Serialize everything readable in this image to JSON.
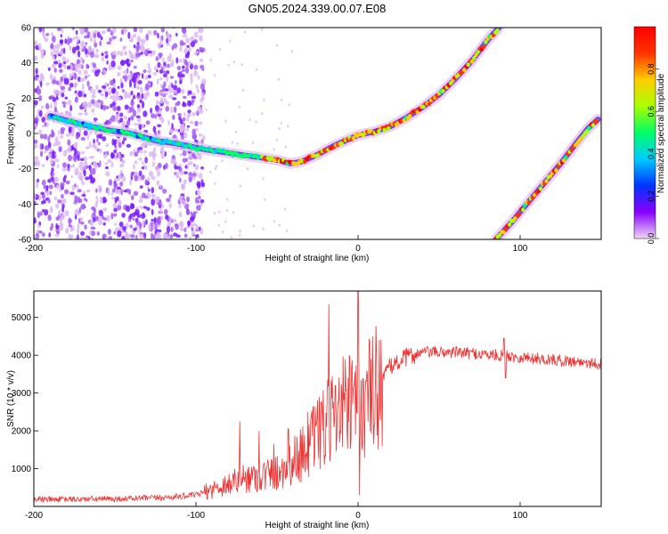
{
  "figure": {
    "title": "GN05.2024.339.00.07.E08"
  },
  "chart_data": [
    {
      "type": "heatmap",
      "xlabel": "Height of straight line (km)",
      "ylabel": "Frequency (Hz)",
      "xlim": [
        -200,
        150
      ],
      "ylim": [
        -60,
        60
      ],
      "x_ticks": [
        -200,
        -100,
        0,
        100
      ],
      "y_ticks": [
        -60,
        -40,
        -20,
        0,
        20,
        40,
        60
      ],
      "colorbar": {
        "label": "Normalized spectral amplitude",
        "range": [
          0,
          1
        ],
        "ticks": [
          0,
          0.2,
          0.4,
          0.6,
          0.8
        ],
        "colormap": "rainbow",
        "colors": [
          "#f0d8f4",
          "#8800ff",
          "#0033ff",
          "#00ccff",
          "#00ff66",
          "#aaff00",
          "#ffcc00",
          "#ff3300",
          "#ff0000"
        ]
      },
      "noise_region_x": [
        -200,
        -95
      ],
      "traces": [
        {
          "points": [
            [
              -190,
              10
            ],
            [
              -170,
              5
            ],
            [
              -155,
              2
            ],
            [
              -140,
              0
            ],
            [
              -125,
              -4
            ],
            [
              -110,
              -6
            ],
            [
              -95,
              -9
            ],
            [
              -80,
              -11
            ],
            [
              -65,
              -13
            ],
            [
              -50,
              -15
            ],
            [
              -42,
              -17
            ],
            [
              -35,
              -16
            ],
            [
              -25,
              -12
            ],
            [
              -15,
              -7
            ],
            [
              -5,
              -3
            ],
            [
              0,
              -1
            ],
            [
              10,
              1
            ],
            [
              20,
              4
            ],
            [
              30,
              9
            ],
            [
              40,
              15
            ],
            [
              50,
              22
            ],
            [
              60,
              31
            ],
            [
              70,
              41
            ],
            [
              80,
              53
            ],
            [
              87,
              60
            ]
          ],
          "peak_from_x": -60
        },
        {
          "points": [
            [
              85,
              -60
            ],
            [
              95,
              -50
            ],
            [
              105,
              -39
            ],
            [
              115,
              -28
            ],
            [
              125,
              -17
            ],
            [
              135,
              -5
            ],
            [
              142,
              3
            ],
            [
              148,
              8
            ]
          ],
          "peak_from_x": 85
        }
      ]
    },
    {
      "type": "line",
      "xlabel": "Height of straight line (km)",
      "ylabel": "SNR (10 * v/v)",
      "xlim": [
        -200,
        150
      ],
      "ylim": [
        0,
        5700
      ],
      "x_ticks": [
        -200,
        -100,
        0,
        100
      ],
      "y_ticks": [
        1000,
        2000,
        3000,
        4000,
        5000
      ],
      "color": "#ee3333",
      "envelope": [
        [
          -200,
          180
        ],
        [
          -150,
          200
        ],
        [
          -120,
          230
        ],
        [
          -100,
          300
        ],
        [
          -80,
          600
        ],
        [
          -70,
          750
        ],
        [
          -60,
          800
        ],
        [
          -50,
          900
        ],
        [
          -40,
          1200
        ],
        [
          -30,
          1600
        ],
        [
          -20,
          2100
        ],
        [
          -10,
          2600
        ],
        [
          0,
          2600
        ],
        [
          10,
          3100
        ],
        [
          20,
          3700
        ],
        [
          30,
          3950
        ],
        [
          40,
          4080
        ],
        [
          60,
          4080
        ],
        [
          80,
          4020
        ],
        [
          100,
          3950
        ],
        [
          120,
          3880
        ],
        [
          150,
          3780
        ]
      ],
      "spikes": [
        [
          -73,
          2250
        ],
        [
          -61,
          2000
        ],
        [
          -52,
          1650
        ],
        [
          -43,
          2050
        ],
        [
          -31,
          2500
        ],
        [
          -24,
          2900
        ],
        [
          -18,
          5350
        ],
        [
          -14,
          3200
        ],
        [
          -10,
          3000
        ],
        [
          -6,
          3400
        ],
        [
          0,
          5700
        ],
        [
          1,
          300
        ],
        [
          5,
          3300
        ],
        [
          90,
          4450
        ],
        [
          91,
          3400
        ]
      ]
    }
  ]
}
